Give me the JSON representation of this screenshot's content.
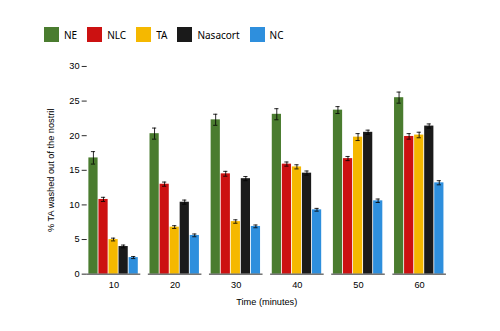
{
  "chart_data": {
    "type": "bar",
    "xlabel": "Time (minutes)",
    "ylabel": "% TA washed out of the nostril",
    "categories": [
      "10",
      "20",
      "30",
      "40",
      "50",
      "60"
    ],
    "series": [
      {
        "name": "NE",
        "color": "#4a7c2f",
        "values": [
          16.8,
          20.3,
          22.3,
          23.1,
          23.7,
          25.5
        ],
        "errors": [
          0.9,
          0.8,
          0.8,
          0.8,
          0.5,
          0.8
        ]
      },
      {
        "name": "NLC",
        "color": "#cc1111",
        "values": [
          10.8,
          13.0,
          14.5,
          15.9,
          16.7,
          19.9
        ],
        "errors": [
          0.3,
          0.3,
          0.35,
          0.3,
          0.3,
          0.4
        ]
      },
      {
        "name": "TA",
        "color": "#f5b800",
        "values": [
          5.0,
          6.8,
          7.6,
          15.5,
          19.8,
          20.1
        ],
        "errors": [
          0.2,
          0.2,
          0.25,
          0.3,
          0.5,
          0.4
        ]
      },
      {
        "name": "Nasacort",
        "color": "#1a1a1a",
        "values": [
          4.0,
          10.4,
          13.8,
          14.6,
          20.5,
          21.4
        ],
        "errors": [
          0.2,
          0.3,
          0.3,
          0.3,
          0.3,
          0.3
        ]
      },
      {
        "name": "NC",
        "color": "#2e8fdd",
        "values": [
          2.4,
          5.6,
          6.9,
          9.3,
          10.6,
          13.2
        ],
        "errors": [
          0.15,
          0.2,
          0.2,
          0.2,
          0.25,
          0.3
        ]
      }
    ],
    "ylim": [
      0,
      30
    ],
    "yticks": [
      0,
      5,
      10,
      15,
      20,
      25,
      30
    ],
    "legend": "top",
    "grid": false
  }
}
